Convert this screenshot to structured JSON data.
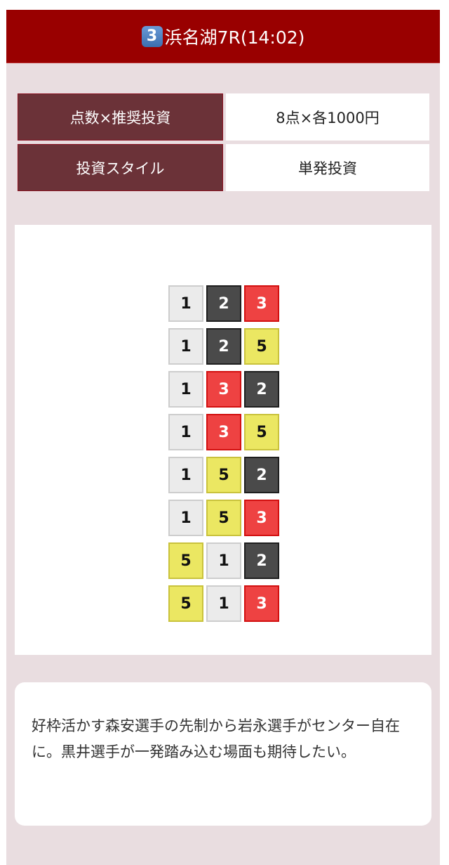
{
  "header": {
    "badge": "3",
    "title": "浜名湖7R(14:02)"
  },
  "info": [
    {
      "label": "点数×推奨投資",
      "value": "8点×各1000円"
    },
    {
      "label": "投資スタイル",
      "value": "単発投資"
    }
  ],
  "colors": {
    "1": "#ebebeb",
    "2": "#4a4a4a",
    "3": "#ee4242",
    "5": "#ebe762",
    "header": "#990000"
  },
  "bets": [
    [
      "1",
      "2",
      "3"
    ],
    [
      "1",
      "2",
      "5"
    ],
    [
      "1",
      "3",
      "2"
    ],
    [
      "1",
      "3",
      "5"
    ],
    [
      "1",
      "5",
      "2"
    ],
    [
      "1",
      "5",
      "3"
    ],
    [
      "5",
      "1",
      "2"
    ],
    [
      "5",
      "1",
      "3"
    ]
  ],
  "comment": "好枠活かす森安選手の先制から岩永選手がセンター自在に。黒井選手が一発踏み込む場面も期待したい。"
}
